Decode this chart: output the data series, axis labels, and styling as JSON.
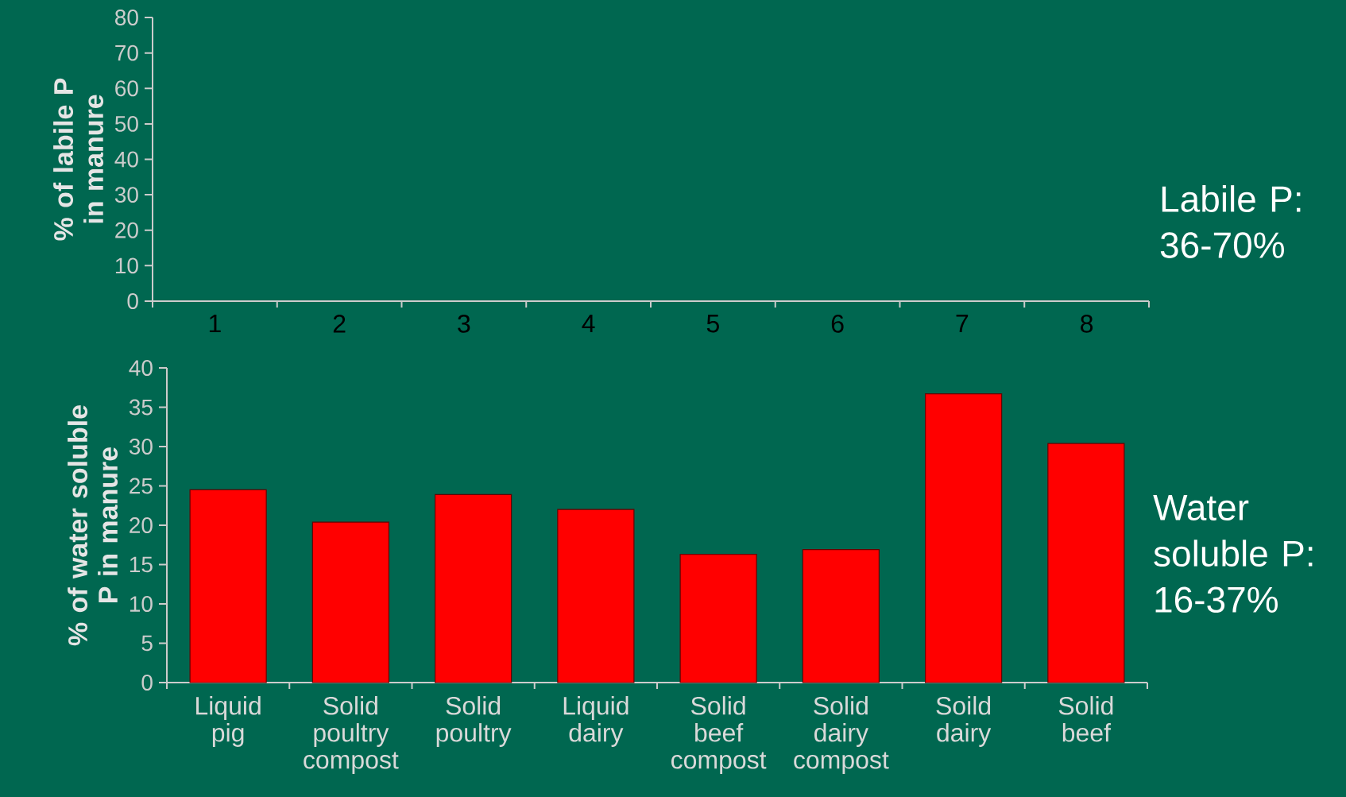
{
  "chart_data": [
    {
      "type": "bar",
      "ylabel": "% of labile P in manure",
      "categories": [
        "1",
        "2",
        "3",
        "4",
        "5",
        "6",
        "7",
        "8"
      ],
      "values": [
        null,
        null,
        null,
        null,
        null,
        null,
        null,
        null
      ],
      "ylim": [
        0,
        80
      ],
      "yticks": [
        0,
        10,
        20,
        30,
        40,
        50,
        60,
        70,
        80
      ],
      "annotations": [
        "Labile P: 36-70%"
      ]
    },
    {
      "type": "bar",
      "ylabel": "% of water soluble P in manure",
      "categories": [
        "Liquid pig",
        "Solid poultry compost",
        "Solid poultry",
        "Liquid dairy",
        "Solid beef compost",
        "Solid dairy compost",
        "Soild dairy",
        "Solid beef"
      ],
      "values": [
        24.5,
        20.4,
        23.9,
        22.0,
        16.3,
        16.9,
        36.7,
        30.4
      ],
      "color": "#ff0000",
      "ylim": [
        0,
        40
      ],
      "yticks": [
        0,
        5,
        10,
        15,
        20,
        25,
        30,
        35,
        40
      ],
      "annotations": [
        "Water soluble P: 16-37%"
      ]
    }
  ]
}
